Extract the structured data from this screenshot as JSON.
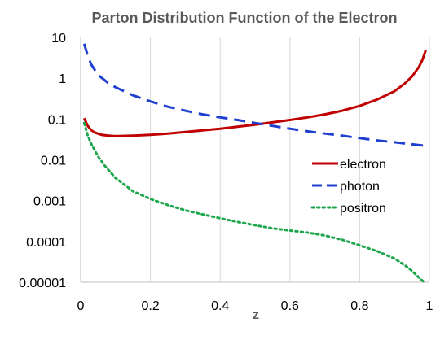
{
  "chart_data": {
    "type": "line",
    "title": "Parton Distribution Function of the Electron",
    "xlabel": "z",
    "ylabel": "",
    "xlim": [
      0,
      1
    ],
    "ylim": [
      1e-05,
      10
    ],
    "yscale": "log",
    "grid": "vertical",
    "legend_position": "right",
    "x_ticks": [
      "0",
      "0.2",
      "0.4",
      "0.6",
      "0.8",
      "1"
    ],
    "y_ticks": [
      "10",
      "1",
      "0.1",
      "0.01",
      "0.001",
      "0.0001",
      "0.00001"
    ],
    "series": [
      {
        "name": "electron",
        "color": "#c00000",
        "style": "solid",
        "points": [
          [
            0.01,
            0.105
          ],
          [
            0.015,
            0.085
          ],
          [
            0.02,
            0.068
          ],
          [
            0.03,
            0.054
          ],
          [
            0.04,
            0.047
          ],
          [
            0.06,
            0.041
          ],
          [
            0.08,
            0.039
          ],
          [
            0.1,
            0.038
          ],
          [
            0.15,
            0.039
          ],
          [
            0.2,
            0.041
          ],
          [
            0.25,
            0.044
          ],
          [
            0.3,
            0.048
          ],
          [
            0.35,
            0.053
          ],
          [
            0.4,
            0.058
          ],
          [
            0.45,
            0.065
          ],
          [
            0.5,
            0.073
          ],
          [
            0.55,
            0.083
          ],
          [
            0.6,
            0.095
          ],
          [
            0.65,
            0.11
          ],
          [
            0.7,
            0.13
          ],
          [
            0.75,
            0.16
          ],
          [
            0.8,
            0.21
          ],
          [
            0.85,
            0.3
          ],
          [
            0.9,
            0.48
          ],
          [
            0.93,
            0.75
          ],
          [
            0.95,
            1.1
          ],
          [
            0.97,
            1.9
          ],
          [
            0.98,
            2.8
          ],
          [
            0.99,
            5.0
          ]
        ]
      },
      {
        "name": "photon",
        "color": "#1f3fd1",
        "style": "dashed",
        "points": [
          [
            0.01,
            7.0
          ],
          [
            0.02,
            3.6
          ],
          [
            0.03,
            2.2
          ],
          [
            0.05,
            1.2
          ],
          [
            0.08,
            0.75
          ],
          [
            0.1,
            0.6
          ],
          [
            0.15,
            0.38
          ],
          [
            0.2,
            0.27
          ],
          [
            0.25,
            0.2
          ],
          [
            0.3,
            0.16
          ],
          [
            0.35,
            0.13
          ],
          [
            0.4,
            0.11
          ],
          [
            0.45,
            0.095
          ],
          [
            0.5,
            0.08
          ],
          [
            0.55,
            0.068
          ],
          [
            0.6,
            0.058
          ],
          [
            0.65,
            0.05
          ],
          [
            0.7,
            0.044
          ],
          [
            0.75,
            0.039
          ],
          [
            0.8,
            0.034
          ],
          [
            0.85,
            0.03
          ],
          [
            0.9,
            0.027
          ],
          [
            0.95,
            0.024
          ],
          [
            0.99,
            0.022
          ]
        ]
      },
      {
        "name": "positron",
        "color": "#1ea64c",
        "style": "dotted",
        "points": [
          [
            0.01,
            0.08
          ],
          [
            0.02,
            0.04
          ],
          [
            0.03,
            0.025
          ],
          [
            0.05,
            0.012
          ],
          [
            0.07,
            0.007
          ],
          [
            0.1,
            0.0036
          ],
          [
            0.15,
            0.0017
          ],
          [
            0.2,
            0.0011
          ],
          [
            0.25,
            0.00078
          ],
          [
            0.3,
            0.00058
          ],
          [
            0.35,
            0.00046
          ],
          [
            0.4,
            0.00037
          ],
          [
            0.45,
            0.0003
          ],
          [
            0.5,
            0.00025
          ],
          [
            0.55,
            0.00021
          ],
          [
            0.6,
            0.000185
          ],
          [
            0.65,
            0.000165
          ],
          [
            0.7,
            0.00014
          ],
          [
            0.75,
            0.00011
          ],
          [
            0.8,
            8e-05
          ],
          [
            0.85,
            5.8e-05
          ],
          [
            0.9,
            3.8e-05
          ],
          [
            0.93,
            2.6e-05
          ],
          [
            0.95,
            1.9e-05
          ],
          [
            0.97,
            1.3e-05
          ],
          [
            0.985,
            1e-05
          ]
        ]
      }
    ]
  }
}
